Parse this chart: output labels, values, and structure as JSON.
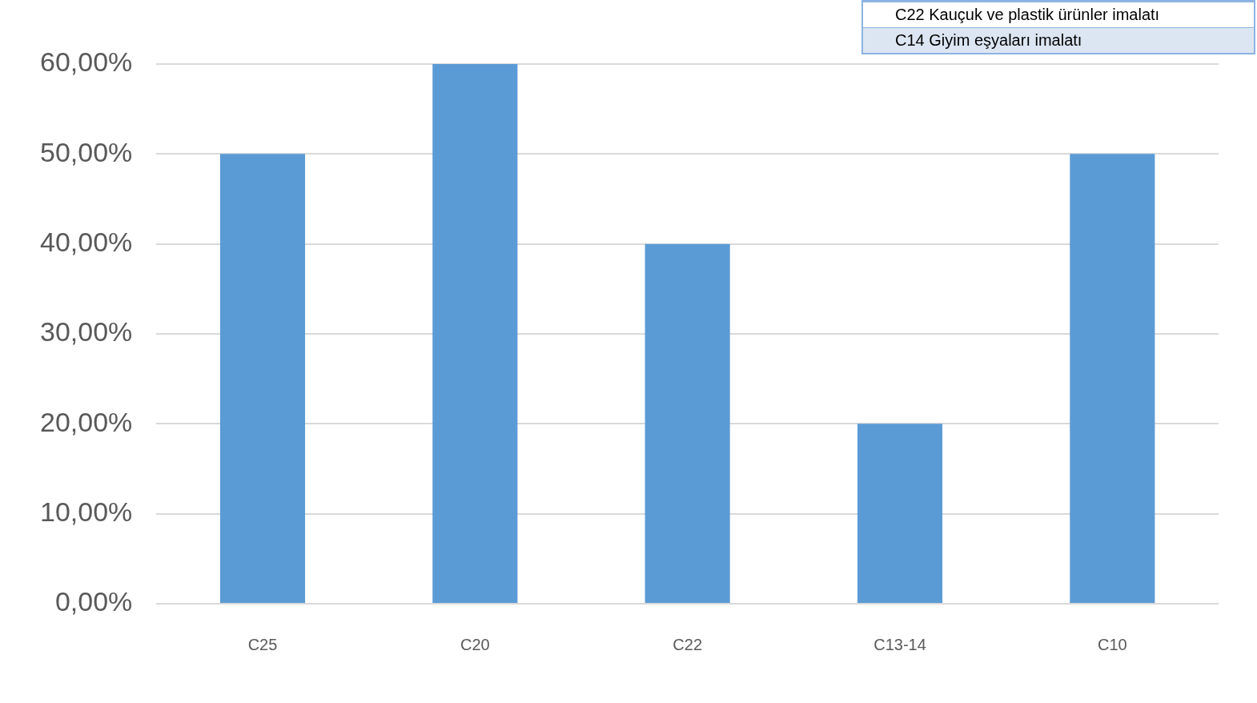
{
  "chart_data": {
    "type": "bar",
    "categories": [
      "C25",
      "C20",
      "C22",
      "C13-14",
      "C10"
    ],
    "values": [
      50,
      60,
      40,
      20,
      50
    ],
    "color": "#5b9bd5",
    "ylim": [
      0,
      60
    ],
    "yticks": [
      {
        "value": 0,
        "label": "0,00%"
      },
      {
        "value": 10,
        "label": "10,00%"
      },
      {
        "value": 20,
        "label": "20,00%"
      },
      {
        "value": 30,
        "label": "30,00%"
      },
      {
        "value": 40,
        "label": "40,00%"
      },
      {
        "value": 50,
        "label": "50,00%"
      },
      {
        "value": 60,
        "label": "60,00%"
      }
    ],
    "grid": "y",
    "annotations": [
      "C22 Kauçuk ve plastik ürünler imalatı",
      "C14 Giyim eşyaları imalatı"
    ]
  }
}
